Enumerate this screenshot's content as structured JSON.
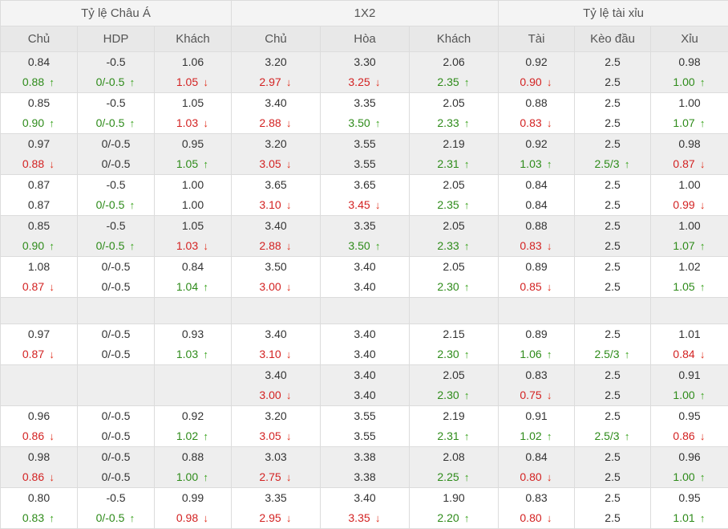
{
  "headers": {
    "groups": [
      "Tỷ lệ Châu Á",
      "1X2",
      "Tỷ lệ tài xỉu"
    ],
    "columns": [
      "Chủ",
      "HDP",
      "Khách",
      "Chủ",
      "Hòa",
      "Khách",
      "Tài",
      "Kèo đầu",
      "Xỉu"
    ]
  },
  "colors": {
    "up": "#2e8b1a",
    "down": "#d32222",
    "stripe": "#eeeeee",
    "border": "#dcdcdc"
  },
  "rows": [
    {
      "cells": [
        {
          "open": "0.84",
          "live": "0.88",
          "trend": "up"
        },
        {
          "open": "-0.5",
          "live": "0/-0.5",
          "trend": "up"
        },
        {
          "open": "1.06",
          "live": "1.05",
          "trend": "down"
        },
        {
          "open": "3.20",
          "live": "2.97",
          "trend": "down"
        },
        {
          "open": "3.30",
          "live": "3.25",
          "trend": "down"
        },
        {
          "open": "2.06",
          "live": "2.35",
          "trend": "up"
        },
        {
          "open": "0.92",
          "live": "0.90",
          "trend": "down"
        },
        {
          "open": "2.5",
          "live": "2.5",
          "trend": "none"
        },
        {
          "open": "0.98",
          "live": "1.00",
          "trend": "up"
        }
      ]
    },
    {
      "cells": [
        {
          "open": "0.85",
          "live": "0.90",
          "trend": "up"
        },
        {
          "open": "-0.5",
          "live": "0/-0.5",
          "trend": "up"
        },
        {
          "open": "1.05",
          "live": "1.03",
          "trend": "down"
        },
        {
          "open": "3.40",
          "live": "2.88",
          "trend": "down"
        },
        {
          "open": "3.35",
          "live": "3.50",
          "trend": "up"
        },
        {
          "open": "2.05",
          "live": "2.33",
          "trend": "up"
        },
        {
          "open": "0.88",
          "live": "0.83",
          "trend": "down"
        },
        {
          "open": "2.5",
          "live": "2.5",
          "trend": "none"
        },
        {
          "open": "1.00",
          "live": "1.07",
          "trend": "up"
        }
      ]
    },
    {
      "cells": [
        {
          "open": "0.97",
          "live": "0.88",
          "trend": "down"
        },
        {
          "open": "0/-0.5",
          "live": "0/-0.5",
          "trend": "none"
        },
        {
          "open": "0.95",
          "live": "1.05",
          "trend": "up"
        },
        {
          "open": "3.20",
          "live": "3.05",
          "trend": "down"
        },
        {
          "open": "3.55",
          "live": "3.55",
          "trend": "none"
        },
        {
          "open": "2.19",
          "live": "2.31",
          "trend": "up"
        },
        {
          "open": "0.92",
          "live": "1.03",
          "trend": "up"
        },
        {
          "open": "2.5",
          "live": "2.5/3",
          "trend": "up"
        },
        {
          "open": "0.98",
          "live": "0.87",
          "trend": "down"
        }
      ]
    },
    {
      "cells": [
        {
          "open": "0.87",
          "live": "0.87",
          "trend": "none"
        },
        {
          "open": "-0.5",
          "live": "0/-0.5",
          "trend": "up"
        },
        {
          "open": "1.00",
          "live": "1.00",
          "trend": "none"
        },
        {
          "open": "3.65",
          "live": "3.10",
          "trend": "down"
        },
        {
          "open": "3.65",
          "live": "3.45",
          "trend": "down"
        },
        {
          "open": "2.05",
          "live": "2.35",
          "trend": "up"
        },
        {
          "open": "0.84",
          "live": "0.84",
          "trend": "none"
        },
        {
          "open": "2.5",
          "live": "2.5",
          "trend": "none"
        },
        {
          "open": "1.00",
          "live": "0.99",
          "trend": "down"
        }
      ]
    },
    {
      "cells": [
        {
          "open": "0.85",
          "live": "0.90",
          "trend": "up"
        },
        {
          "open": "-0.5",
          "live": "0/-0.5",
          "trend": "up"
        },
        {
          "open": "1.05",
          "live": "1.03",
          "trend": "down"
        },
        {
          "open": "3.40",
          "live": "2.88",
          "trend": "down"
        },
        {
          "open": "3.35",
          "live": "3.50",
          "trend": "up"
        },
        {
          "open": "2.05",
          "live": "2.33",
          "trend": "up"
        },
        {
          "open": "0.88",
          "live": "0.83",
          "trend": "down"
        },
        {
          "open": "2.5",
          "live": "2.5",
          "trend": "none"
        },
        {
          "open": "1.00",
          "live": "1.07",
          "trend": "up"
        }
      ]
    },
    {
      "cells": [
        {
          "open": "1.08",
          "live": "0.87",
          "trend": "down"
        },
        {
          "open": "0/-0.5",
          "live": "0/-0.5",
          "trend": "none"
        },
        {
          "open": "0.84",
          "live": "1.04",
          "trend": "up"
        },
        {
          "open": "3.50",
          "live": "3.00",
          "trend": "down"
        },
        {
          "open": "3.40",
          "live": "3.40",
          "trend": "none"
        },
        {
          "open": "2.05",
          "live": "2.30",
          "trend": "up"
        },
        {
          "open": "0.89",
          "live": "0.85",
          "trend": "down"
        },
        {
          "open": "2.5",
          "live": "2.5",
          "trend": "none"
        },
        {
          "open": "1.02",
          "live": "1.05",
          "trend": "up"
        }
      ]
    },
    {
      "empty": true,
      "cells": []
    },
    {
      "cells": [
        {
          "open": "0.97",
          "live": "0.87",
          "trend": "down"
        },
        {
          "open": "0/-0.5",
          "live": "0/-0.5",
          "trend": "none"
        },
        {
          "open": "0.93",
          "live": "1.03",
          "trend": "up"
        },
        {
          "open": "3.40",
          "live": "3.10",
          "trend": "down"
        },
        {
          "open": "3.40",
          "live": "3.40",
          "trend": "none"
        },
        {
          "open": "2.15",
          "live": "2.30",
          "trend": "up"
        },
        {
          "open": "0.89",
          "live": "1.06",
          "trend": "up"
        },
        {
          "open": "2.5",
          "live": "2.5/3",
          "trend": "up"
        },
        {
          "open": "1.01",
          "live": "0.84",
          "trend": "down"
        }
      ]
    },
    {
      "cells": [
        {
          "open": "",
          "live": "",
          "trend": "none"
        },
        {
          "open": "",
          "live": "",
          "trend": "none"
        },
        {
          "open": "",
          "live": "",
          "trend": "none"
        },
        {
          "open": "3.40",
          "live": "3.00",
          "trend": "down"
        },
        {
          "open": "3.40",
          "live": "3.40",
          "trend": "none"
        },
        {
          "open": "2.05",
          "live": "2.30",
          "trend": "up"
        },
        {
          "open": "0.83",
          "live": "0.75",
          "trend": "down"
        },
        {
          "open": "2.5",
          "live": "2.5",
          "trend": "none"
        },
        {
          "open": "0.91",
          "live": "1.00",
          "trend": "up"
        }
      ]
    },
    {
      "cells": [
        {
          "open": "0.96",
          "live": "0.86",
          "trend": "down"
        },
        {
          "open": "0/-0.5",
          "live": "0/-0.5",
          "trend": "none"
        },
        {
          "open": "0.92",
          "live": "1.02",
          "trend": "up"
        },
        {
          "open": "3.20",
          "live": "3.05",
          "trend": "down"
        },
        {
          "open": "3.55",
          "live": "3.55",
          "trend": "none"
        },
        {
          "open": "2.19",
          "live": "2.31",
          "trend": "up"
        },
        {
          "open": "0.91",
          "live": "1.02",
          "trend": "up"
        },
        {
          "open": "2.5",
          "live": "2.5/3",
          "trend": "up"
        },
        {
          "open": "0.95",
          "live": "0.86",
          "trend": "down"
        }
      ]
    },
    {
      "cells": [
        {
          "open": "0.98",
          "live": "0.86",
          "trend": "down"
        },
        {
          "open": "0/-0.5",
          "live": "0/-0.5",
          "trend": "none"
        },
        {
          "open": "0.88",
          "live": "1.00",
          "trend": "up"
        },
        {
          "open": "3.03",
          "live": "2.75",
          "trend": "down"
        },
        {
          "open": "3.38",
          "live": "3.38",
          "trend": "none"
        },
        {
          "open": "2.08",
          "live": "2.25",
          "trend": "up"
        },
        {
          "open": "0.84",
          "live": "0.80",
          "trend": "down"
        },
        {
          "open": "2.5",
          "live": "2.5",
          "trend": "none"
        },
        {
          "open": "0.96",
          "live": "1.00",
          "trend": "up"
        }
      ]
    },
    {
      "cells": [
        {
          "open": "0.80",
          "live": "0.83",
          "trend": "up"
        },
        {
          "open": "-0.5",
          "live": "0/-0.5",
          "trend": "up"
        },
        {
          "open": "0.99",
          "live": "0.98",
          "trend": "down"
        },
        {
          "open": "3.35",
          "live": "2.95",
          "trend": "down"
        },
        {
          "open": "3.40",
          "live": "3.35",
          "trend": "down"
        },
        {
          "open": "1.90",
          "live": "2.20",
          "trend": "up"
        },
        {
          "open": "0.83",
          "live": "0.80",
          "trend": "down"
        },
        {
          "open": "2.5",
          "live": "2.5",
          "trend": "none"
        },
        {
          "open": "0.95",
          "live": "1.01",
          "trend": "up"
        }
      ]
    }
  ]
}
